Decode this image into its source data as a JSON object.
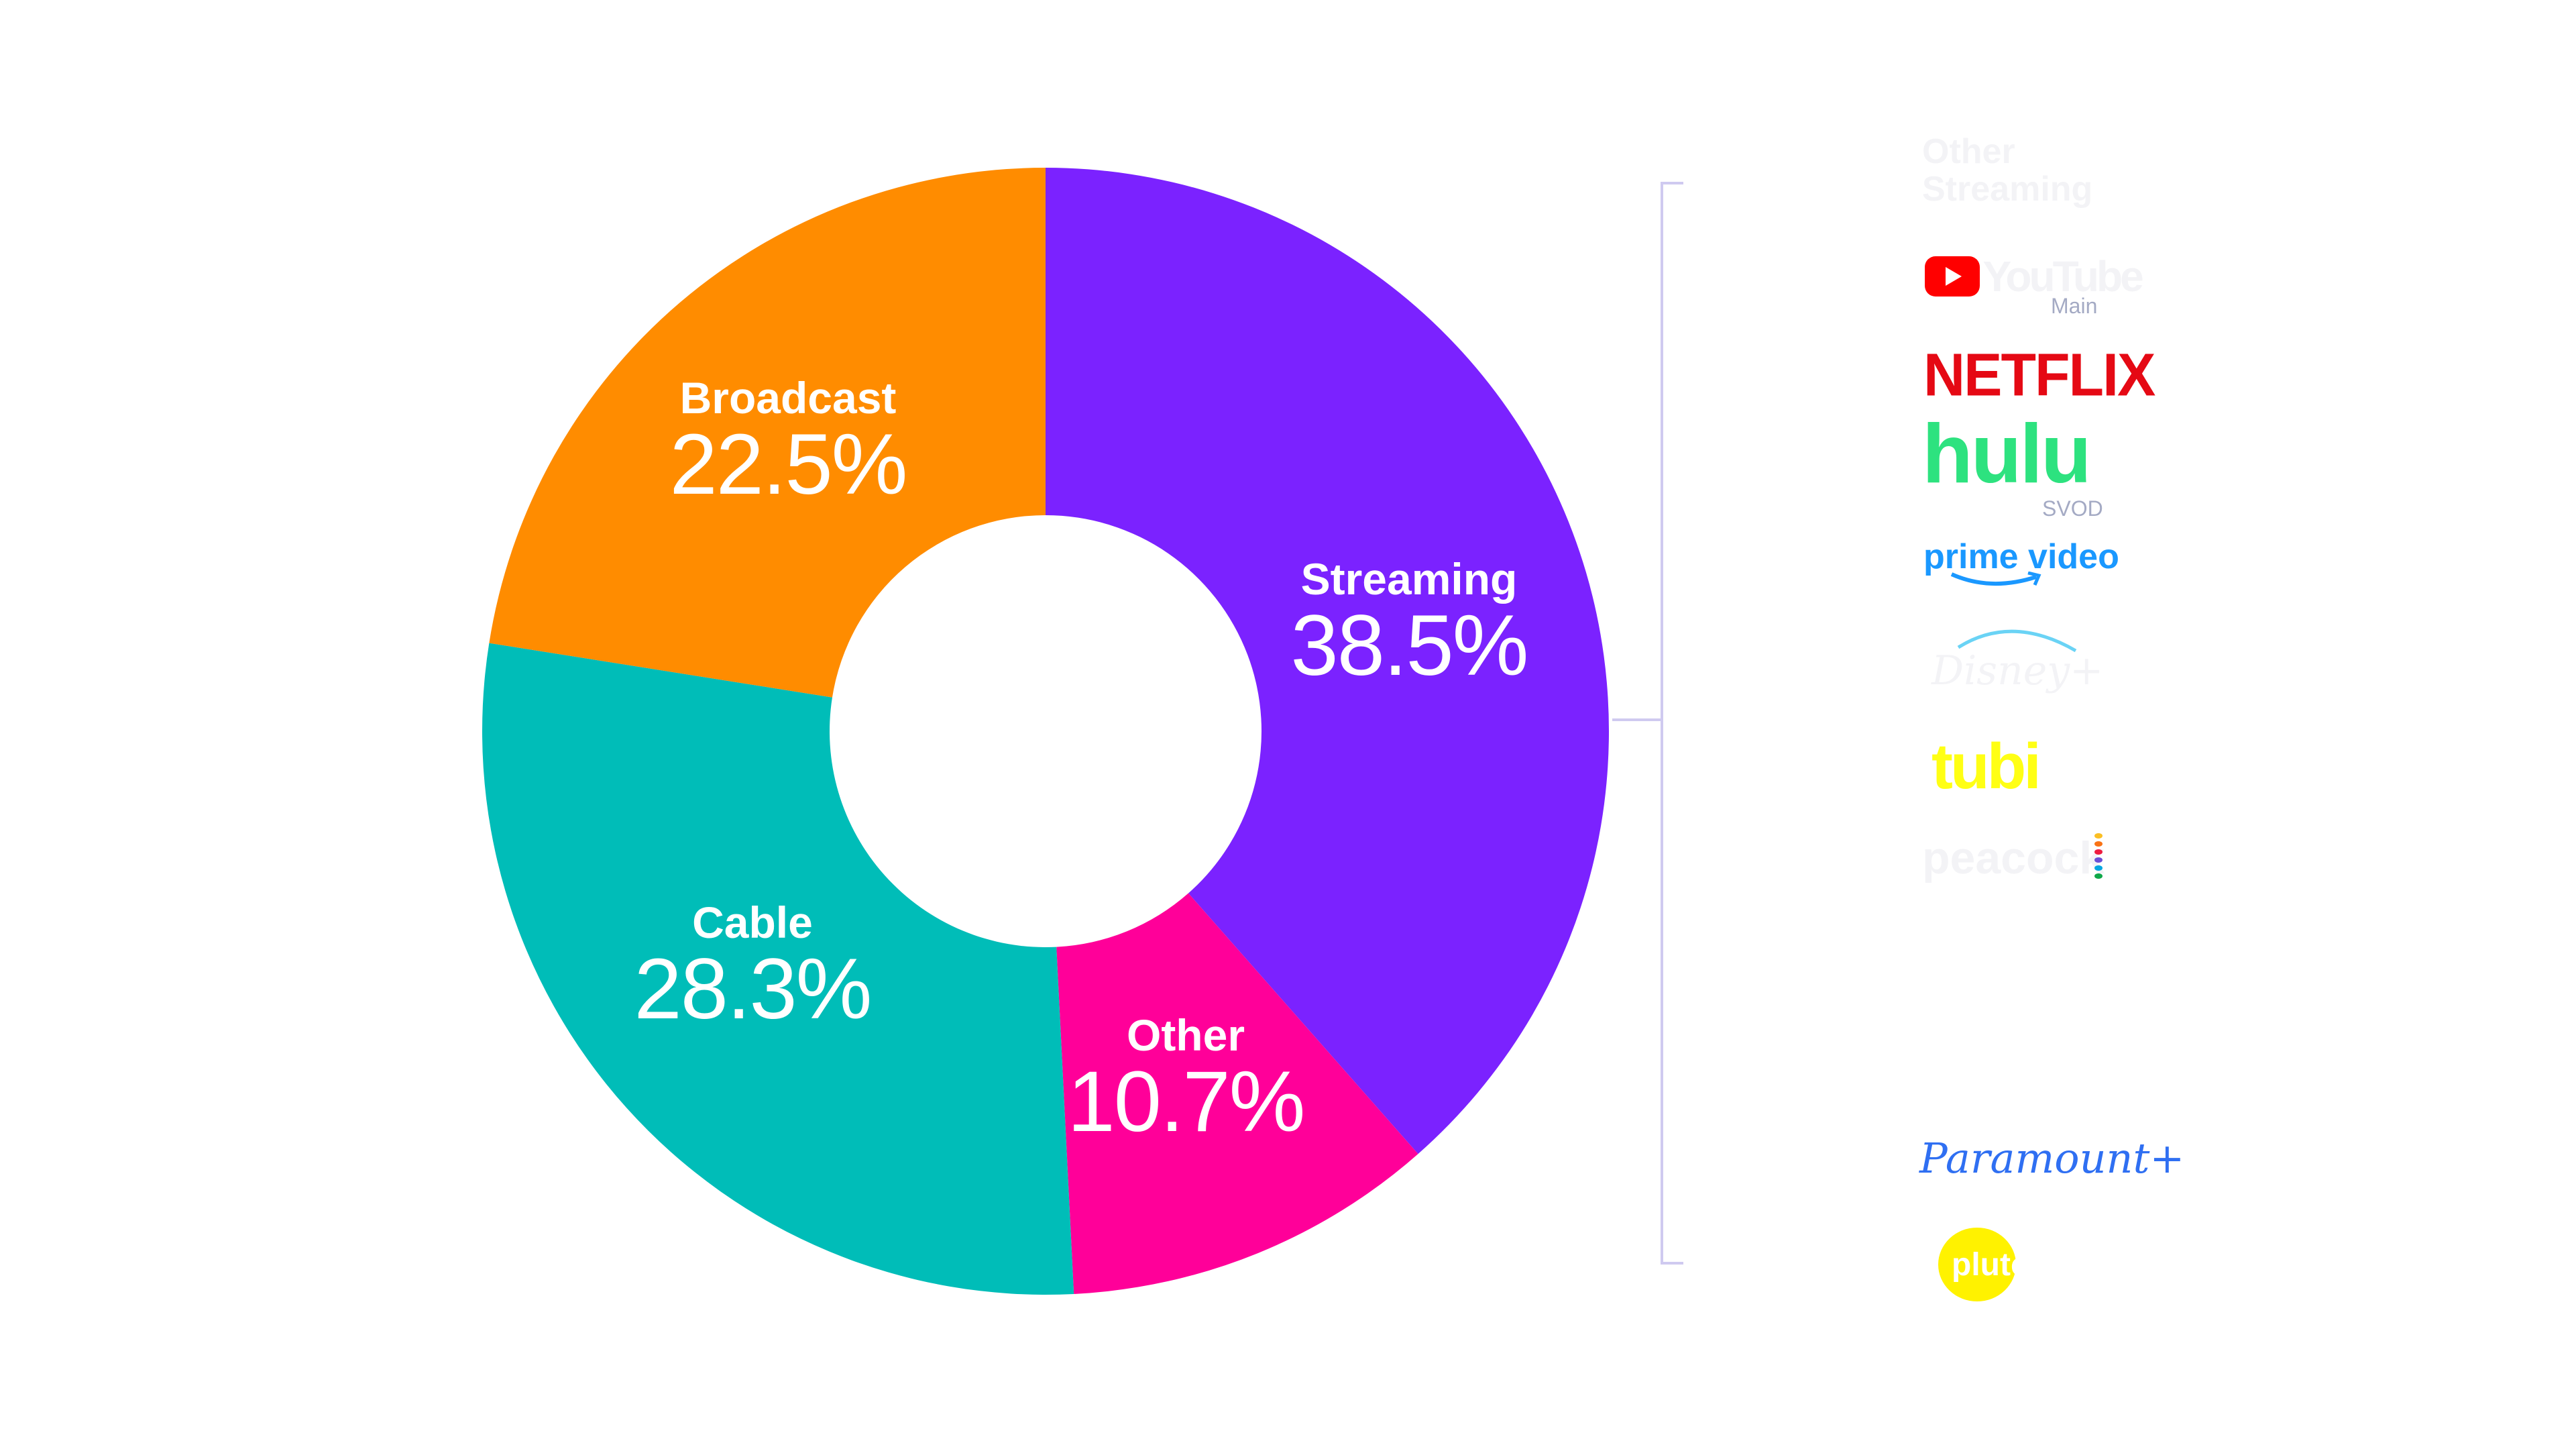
{
  "chart_data": {
    "type": "pie",
    "variant": "donut",
    "start": "12 o'clock, clockwise",
    "slices": [
      {
        "label": "Streaming",
        "value": 38.5,
        "display": "38.5%",
        "color": "#7b22ff"
      },
      {
        "label": "Other",
        "value": 10.7,
        "display": "10.7%",
        "color": "#ff0099"
      },
      {
        "label": "Cable",
        "value": 28.3,
        "display": "28.3%",
        "color": "#00bdb8"
      },
      {
        "label": "Broadcast",
        "value": 22.5,
        "display": "22.5%",
        "color": "#ff8c00"
      }
    ]
  },
  "breakdown": {
    "title_line1": "Other",
    "title_line2": "Streaming",
    "bracket_color": "#cfcaf0",
    "logos": [
      {
        "name": "YouTube",
        "sub": "Main"
      },
      {
        "name": "NETFLIX"
      },
      {
        "name": "hulu",
        "sub": "SVOD"
      },
      {
        "name": "prime video"
      },
      {
        "name": "Disney+"
      },
      {
        "name": "tubi"
      },
      {
        "name": "peacock"
      },
      {
        "name": "Paramount+"
      },
      {
        "name": "pluto tv"
      }
    ]
  }
}
